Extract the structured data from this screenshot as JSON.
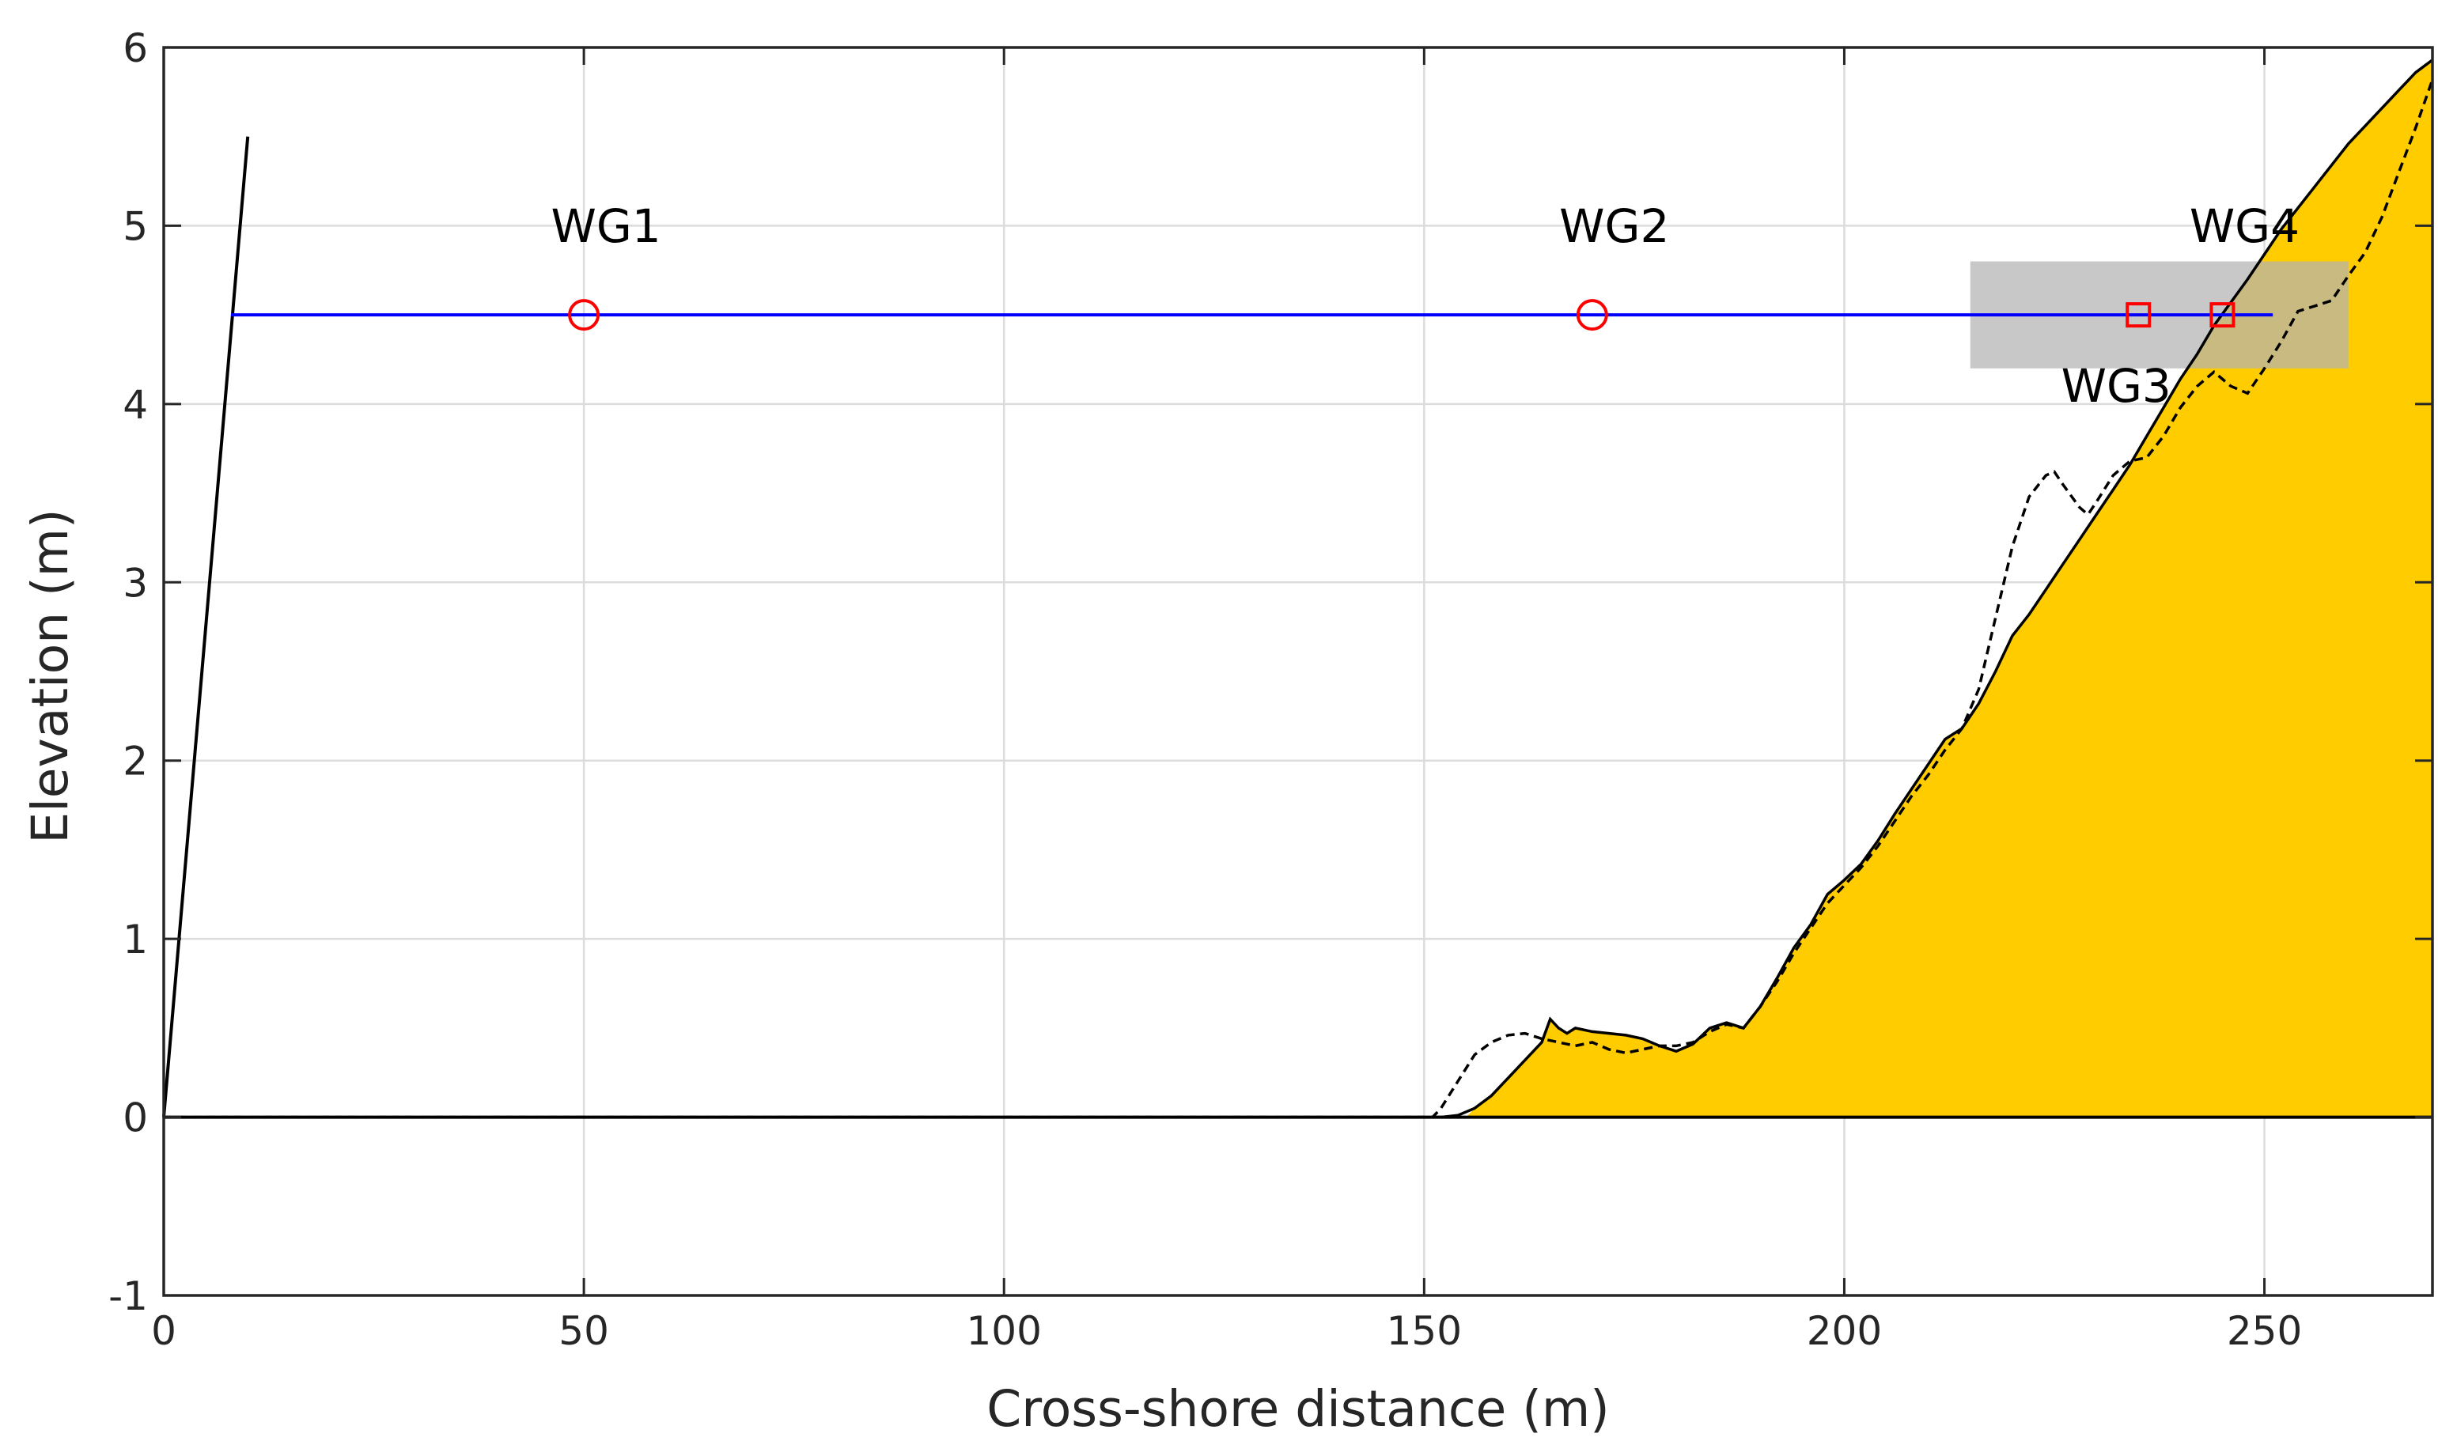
{
  "chart_data": {
    "type": "line",
    "title": "",
    "xlabel": "Cross-shore distance (m)",
    "ylabel": "Elevation (m)",
    "xlim": [
      0,
      270
    ],
    "ylim": [
      -1,
      6
    ],
    "xticks": [
      0,
      50,
      100,
      150,
      200,
      250
    ],
    "yticks": [
      -1,
      0,
      1,
      2,
      3,
      4,
      5,
      6
    ],
    "grid": true,
    "legend": "none",
    "colors": {
      "water_level": "#0000ff",
      "gauge_marker": "#ff0000",
      "bed_fill": "#ffcc00",
      "highlight_box": "#b3b3b3",
      "profile": "#000000"
    },
    "series": [
      {
        "style": "solid",
        "x": [
          0,
          151,
          152,
          154,
          156,
          158,
          160,
          162,
          164,
          165,
          166,
          167,
          168,
          170,
          172,
          174,
          176,
          178,
          180,
          182,
          184,
          186,
          188,
          190,
          192,
          194,
          196,
          198,
          200,
          202,
          204,
          206,
          208,
          210,
          212,
          214,
          216,
          218,
          220,
          222,
          224,
          226,
          228,
          230,
          232,
          234,
          236,
          238,
          240,
          242,
          244,
          246,
          248,
          250,
          252,
          254,
          256,
          258,
          260,
          262,
          264,
          266,
          268,
          270
        ],
        "y": [
          0,
          0,
          0,
          0.01,
          0.05,
          0.12,
          0.22,
          0.32,
          0.42,
          0.55,
          0.5,
          0.47,
          0.5,
          0.48,
          0.47,
          0.46,
          0.44,
          0.4,
          0.37,
          0.41,
          0.5,
          0.53,
          0.5,
          0.62,
          0.78,
          0.95,
          1.08,
          1.25,
          1.33,
          1.42,
          1.55,
          1.7,
          1.84,
          1.98,
          2.12,
          2.18,
          2.32,
          2.5,
          2.7,
          2.82,
          2.96,
          3.1,
          3.24,
          3.38,
          3.52,
          3.66,
          3.82,
          3.98,
          4.14,
          4.28,
          4.44,
          4.57,
          4.7,
          4.84,
          4.98,
          5.1,
          5.22,
          5.34,
          5.46,
          5.56,
          5.66,
          5.76,
          5.86,
          5.93
        ]
      },
      {
        "style": "dashed",
        "x": [
          0,
          151,
          152,
          154,
          156,
          158,
          160,
          162,
          164,
          166,
          168,
          170,
          172,
          174,
          176,
          178,
          180,
          182,
          184,
          186,
          188,
          190,
          192,
          194,
          196,
          198,
          200,
          202,
          204,
          206,
          208,
          210,
          212,
          214,
          216,
          218,
          220,
          222,
          224,
          225,
          226,
          228,
          229,
          230,
          232,
          234,
          236,
          238,
          240,
          242,
          244,
          246,
          248,
          250,
          252,
          254,
          256,
          258,
          260,
          262,
          264,
          266,
          268,
          270
        ],
        "y": [
          0,
          0,
          0.05,
          0.2,
          0.35,
          0.42,
          0.46,
          0.47,
          0.44,
          0.42,
          0.4,
          0.42,
          0.38,
          0.36,
          0.38,
          0.4,
          0.4,
          0.42,
          0.48,
          0.52,
          0.5,
          0.62,
          0.76,
          0.92,
          1.06,
          1.2,
          1.3,
          1.4,
          1.52,
          1.66,
          1.8,
          1.92,
          2.06,
          2.18,
          2.4,
          2.8,
          3.2,
          3.48,
          3.6,
          3.62,
          3.55,
          3.42,
          3.38,
          3.45,
          3.6,
          3.68,
          3.7,
          3.82,
          3.98,
          4.1,
          4.18,
          4.1,
          4.06,
          4.2,
          4.35,
          4.52,
          4.55,
          4.58,
          4.72,
          4.85,
          5.05,
          5.3,
          5.55,
          5.82
        ]
      }
    ],
    "vertical_wall_line": {
      "x": [
        0,
        10
      ],
      "y": [
        0,
        5.5
      ]
    },
    "water_level": {
      "x": [
        8,
        251
      ],
      "y": 4.5
    },
    "sloped_bed_shading_start_x": 155,
    "highlight_box": {
      "x": [
        215,
        260
      ],
      "y": [
        4.2,
        4.8
      ]
    },
    "gauges": [
      {
        "label": "WG1",
        "x": 50,
        "y": 4.5,
        "marker": "circle",
        "label_position": "above"
      },
      {
        "label": "WG2",
        "x": 170,
        "y": 4.5,
        "marker": "circle",
        "label_position": "above"
      },
      {
        "label": "WG3",
        "x": 235,
        "y": 4.5,
        "marker": "square",
        "label_position": "below"
      },
      {
        "label": "WG4",
        "x": 245,
        "y": 4.5,
        "marker": "square",
        "label_position": "above"
      }
    ]
  }
}
